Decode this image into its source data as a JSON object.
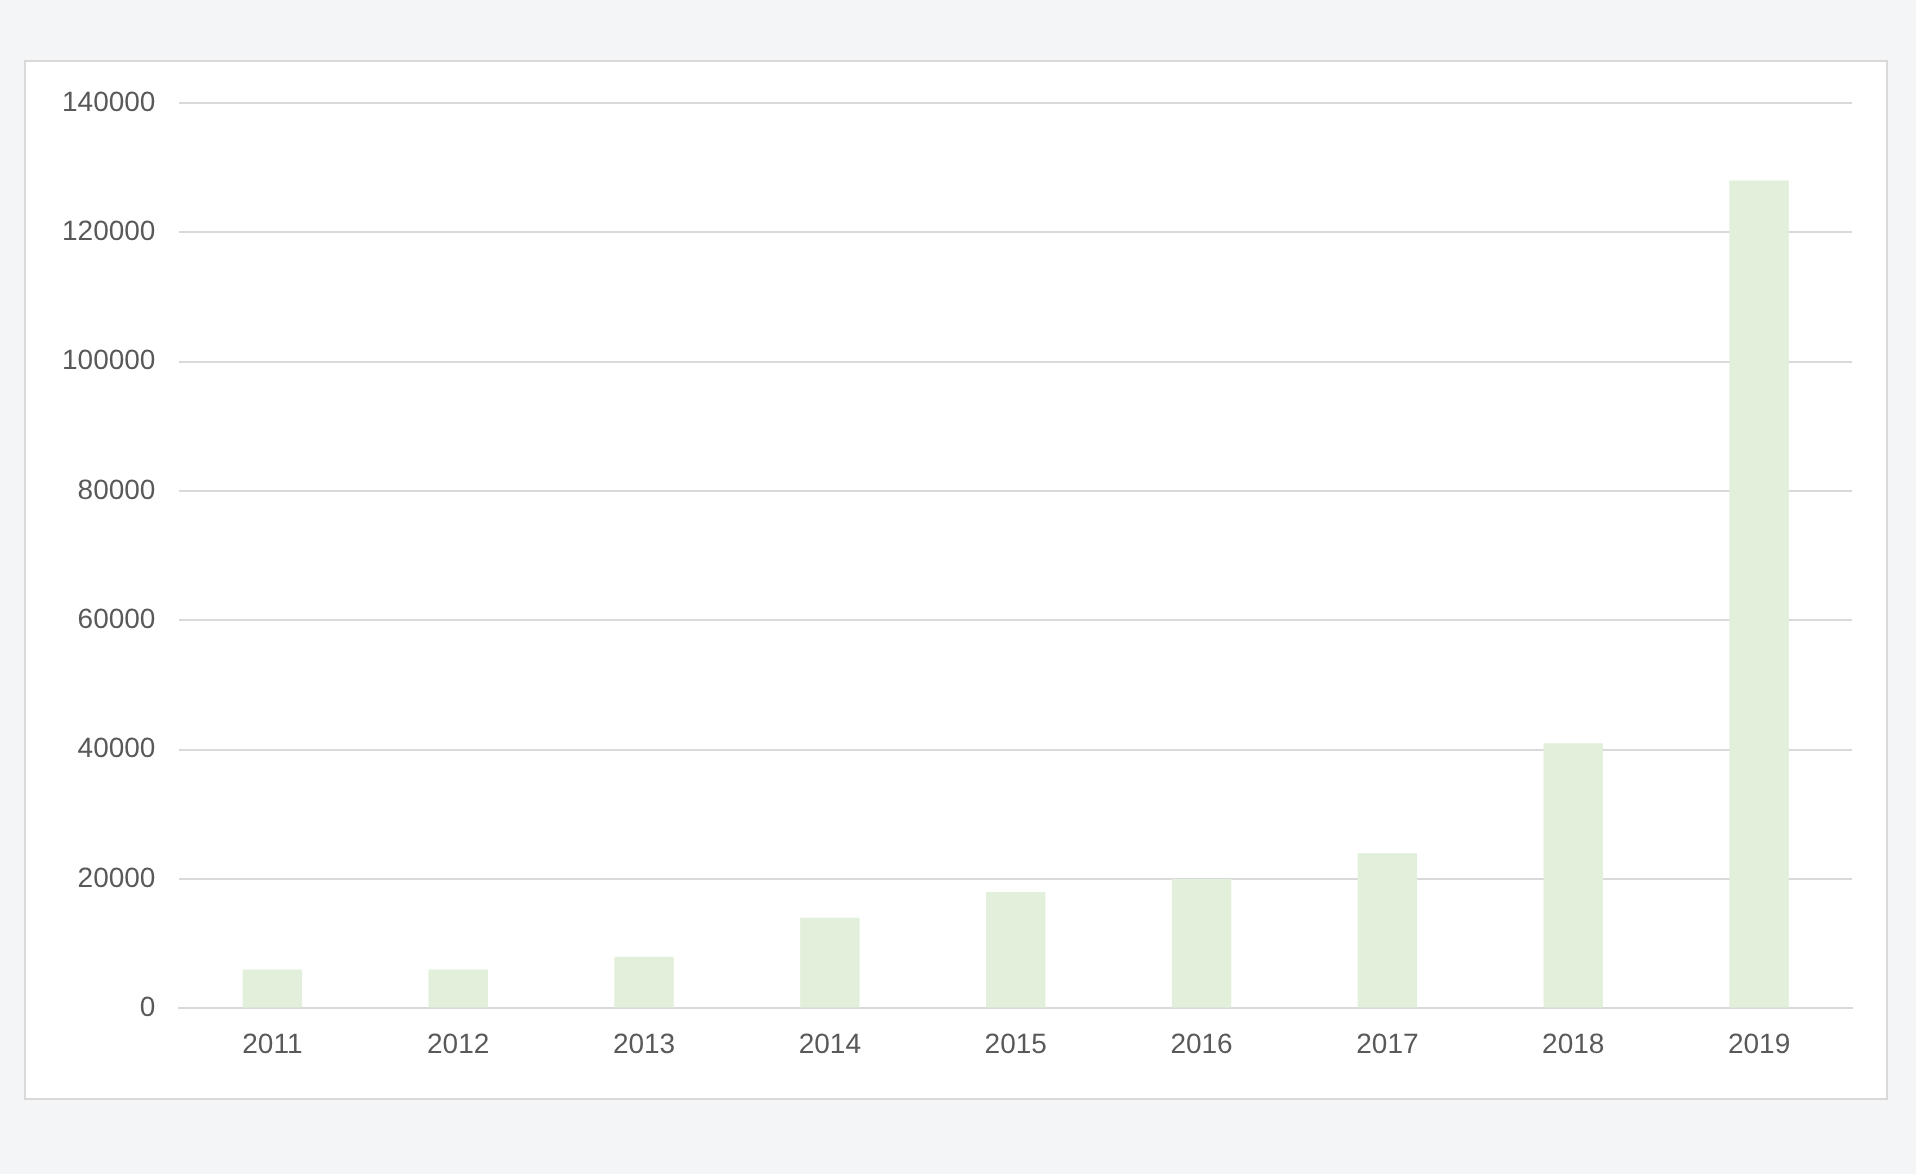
{
  "chart_data": {
    "type": "bar",
    "categories": [
      "2011",
      "2012",
      "2013",
      "2014",
      "2015",
      "2016",
      "2017",
      "2018",
      "2019"
    ],
    "values": [
      6000,
      6000,
      8000,
      14000,
      18000,
      20000,
      24000,
      41000,
      128000
    ],
    "color": "#e2efda",
    "ylim": [
      0,
      140000
    ],
    "yticks": [
      0,
      20000,
      40000,
      60000,
      80000,
      100000,
      120000,
      140000
    ],
    "grid": "y"
  }
}
